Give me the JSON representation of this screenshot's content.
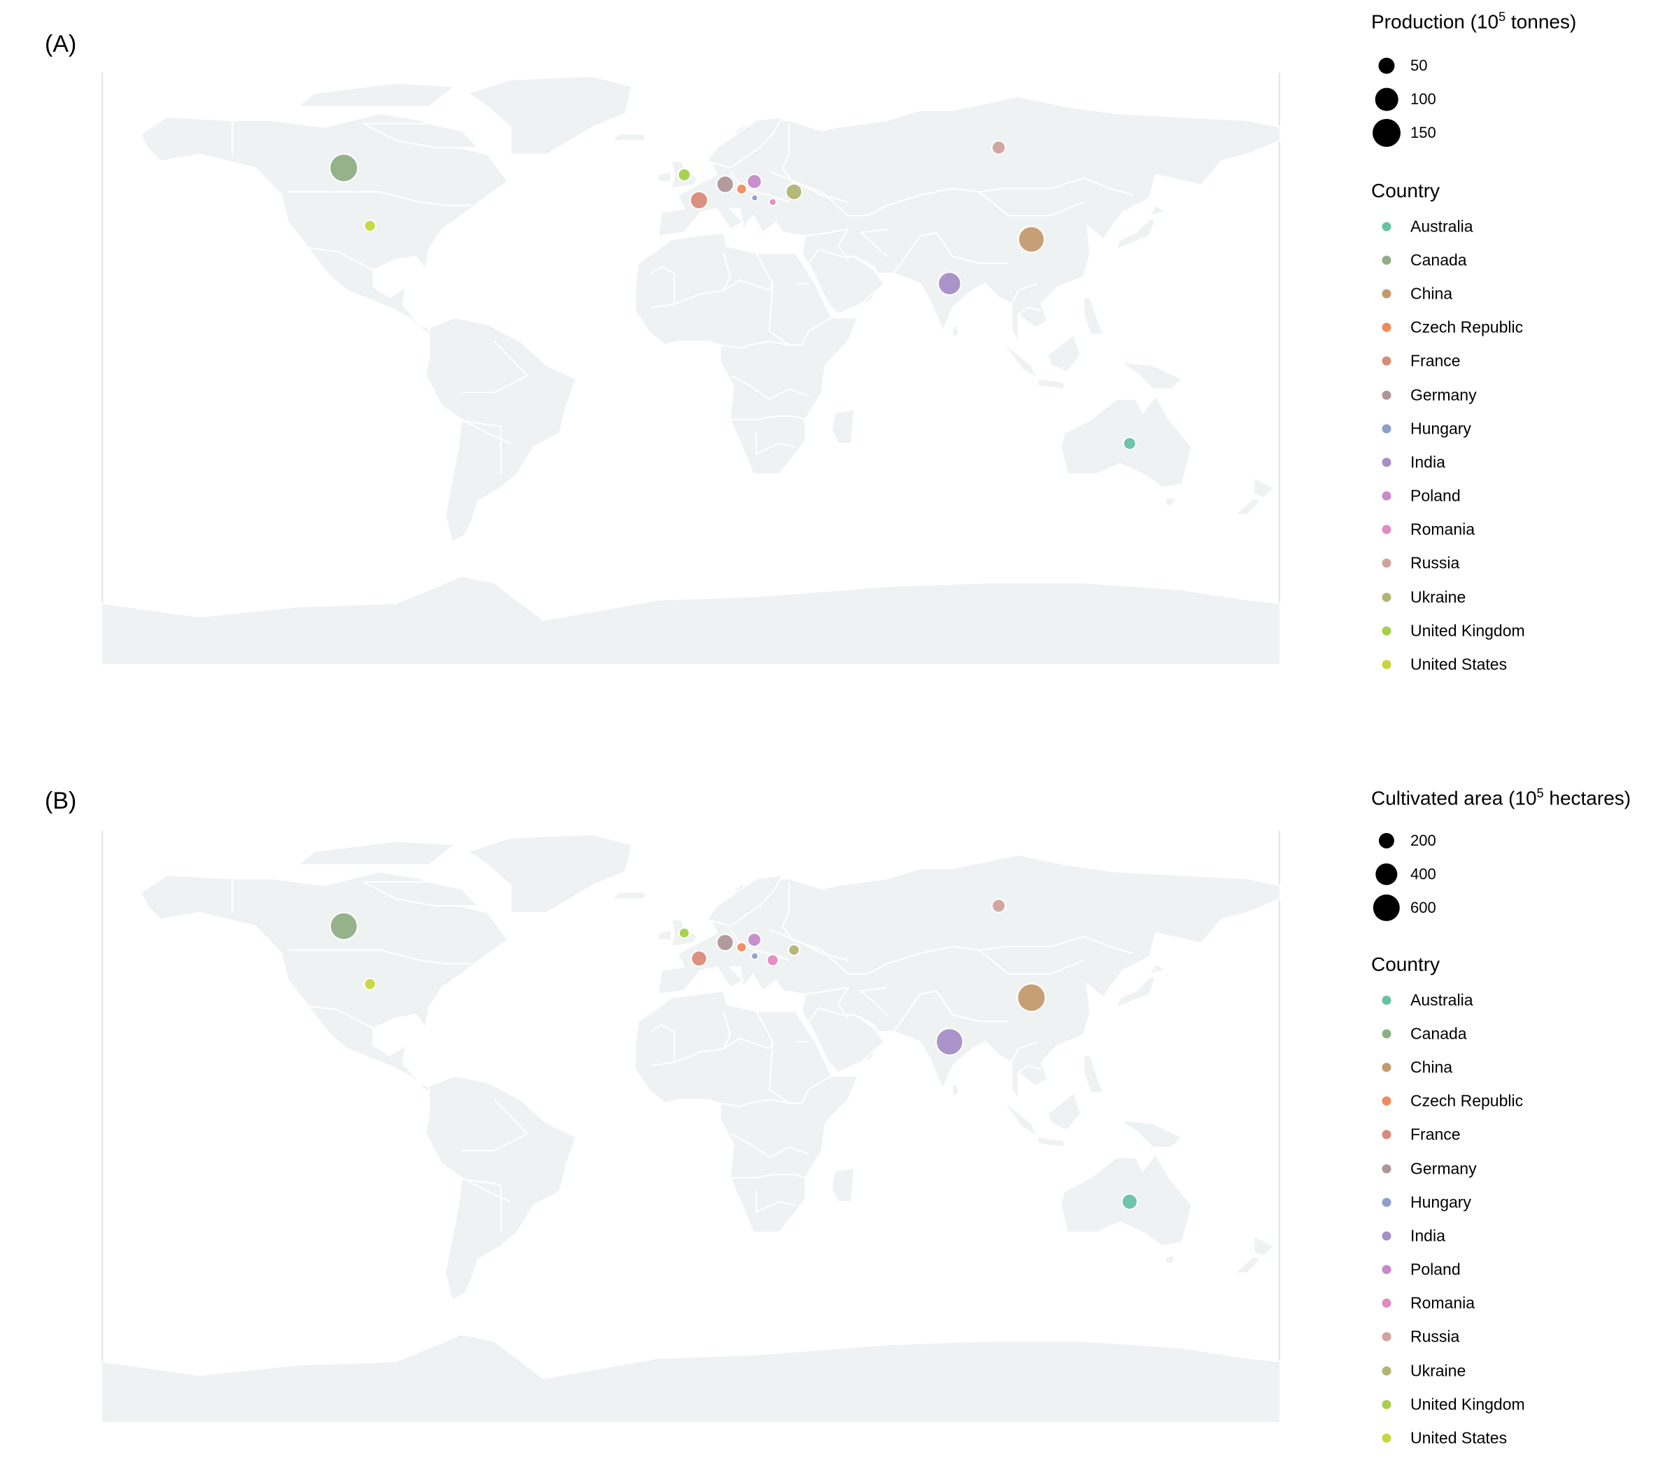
{
  "panels": [
    {
      "label": "(A)",
      "size_legend": {
        "title_main": "Production (10",
        "title_sup": "5",
        "title_tail": " tonnes)",
        "items": [
          {
            "label": "50",
            "value": 50
          },
          {
            "label": "100",
            "value": 100
          },
          {
            "label": "150",
            "value": 150
          }
        ]
      },
      "country_legend_title": "Country",
      "points": {
        "Australia": 30,
        "Canada": 150,
        "China": 130,
        "Czech Republic": 20,
        "France": 60,
        "Germany": 55,
        "Hungary": 8,
        "India": 100,
        "Poland": 40,
        "Romania": 10,
        "Russia": 35,
        "Ukraine": 50,
        "United Kingdom": 30,
        "United States": 25
      }
    },
    {
      "label": "(B)",
      "size_legend": {
        "title_main": "Cultivated area (10",
        "title_sup": "5",
        "title_tail": " hectares)",
        "items": [
          {
            "label": "200",
            "value": 200
          },
          {
            "label": "400",
            "value": 400
          },
          {
            "label": "600",
            "value": 600
          }
        ]
      },
      "country_legend_title": "Country",
      "points": {
        "Australia": 200,
        "Canada": 620,
        "China": 650,
        "Czech Republic": 80,
        "France": 200,
        "Germany": 230,
        "Hungary": 40,
        "India": 600,
        "Poland": 150,
        "Romania": 110,
        "Russia": 150,
        "Ukraine": 100,
        "United Kingdom": 90,
        "United States": 110
      }
    }
  ],
  "countries": [
    {
      "name": "Australia",
      "color": "#66c2a5",
      "lon": 134,
      "lat": -25
    },
    {
      "name": "Canada",
      "color": "#8fae85",
      "lon": -106,
      "lat": 56
    },
    {
      "name": "China",
      "color": "#c39a6f",
      "lon": 104,
      "lat": 35
    },
    {
      "name": "Czech Republic",
      "color": "#f08a5d",
      "lon": 15.5,
      "lat": 49.8
    },
    {
      "name": "France",
      "color": "#d98b79",
      "lon": 2.5,
      "lat": 46.5
    },
    {
      "name": "Germany",
      "color": "#ae9698",
      "lon": 10.5,
      "lat": 51.2
    },
    {
      "name": "Hungary",
      "color": "#8aa0c8",
      "lon": 19.5,
      "lat": 47.2
    },
    {
      "name": "India",
      "color": "#a68ec6",
      "lon": 79,
      "lat": 22
    },
    {
      "name": "Poland",
      "color": "#c48ac9",
      "lon": 19.4,
      "lat": 52
    },
    {
      "name": "Romania",
      "color": "#e08bc3",
      "lon": 25,
      "lat": 46
    },
    {
      "name": "Russia",
      "color": "#cfa39c",
      "lon": 94,
      "lat": 62
    },
    {
      "name": "Ukraine",
      "color": "#b2b472",
      "lon": 31.5,
      "lat": 49
    },
    {
      "name": "United Kingdom",
      "color": "#a4d04a",
      "lon": -2,
      "lat": 54
    },
    {
      "name": "United States",
      "color": "#c6d63d",
      "lon": -98,
      "lat": 39
    }
  ],
  "map_colors": {
    "land": "#eff2f3",
    "border": "#ffffff"
  }
}
